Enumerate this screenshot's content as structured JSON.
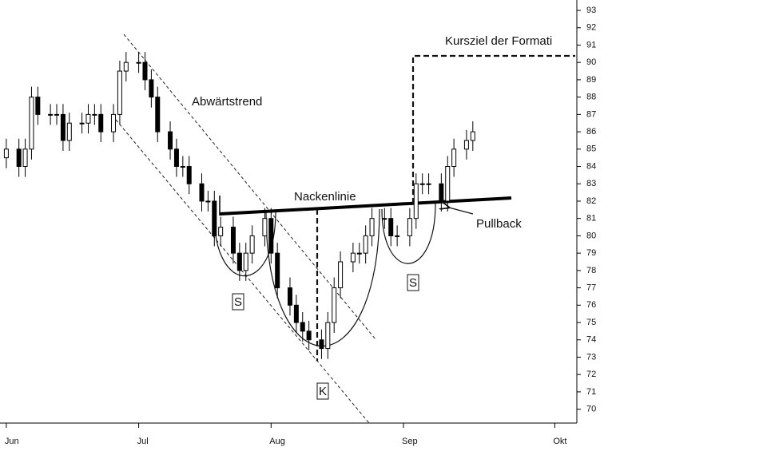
{
  "chart_data": {
    "type": "candlestick",
    "annotations": [
      "Abwärtstrend",
      "Nackenlinie",
      "Pullback",
      "Kursziel der Formati",
      "S",
      "K",
      "S"
    ],
    "x": [
      0,
      2,
      3,
      4,
      5,
      7,
      8,
      9,
      10,
      12,
      13,
      14,
      15,
      17,
      18,
      19,
      21,
      22,
      23,
      24,
      26,
      27,
      28,
      29,
      31,
      32,
      33,
      34,
      36,
      37,
      38,
      39,
      41,
      42,
      43,
      45,
      46,
      47,
      48,
      50,
      51,
      52,
      53,
      55,
      56,
      57,
      58,
      60,
      61,
      62,
      64,
      65,
      66,
      67,
      69,
      70,
      71,
      73,
      74
    ],
    "open": [
      84.5,
      85,
      84,
      85,
      88,
      87,
      87,
      87,
      85.5,
      86.5,
      86.5,
      87,
      87,
      86,
      87,
      89.5,
      90,
      90,
      89,
      88,
      86,
      85,
      84,
      84,
      83,
      82,
      82,
      80,
      80.5,
      79,
      78,
      79,
      80,
      81,
      79,
      77,
      76,
      75,
      74.5,
      74,
      73.5,
      75,
      77,
      78.5,
      79,
      79,
      80,
      81,
      81,
      80,
      80,
      81,
      83,
      83,
      83,
      82,
      84,
      85,
      85.5
    ],
    "high": [
      85.6,
      85.6,
      85.6,
      88.6,
      88.6,
      87.6,
      87.6,
      87.6,
      87.1,
      87.1,
      87.6,
      87.6,
      87.6,
      87.6,
      90.1,
      90.6,
      90.6,
      90.6,
      89.6,
      88.6,
      86.6,
      85.6,
      84.6,
      84.6,
      83.6,
      82.6,
      82.6,
      81.1,
      81.1,
      79.6,
      79.6,
      80.6,
      81.6,
      81.6,
      79.6,
      77.6,
      76.6,
      75.6,
      75.1,
      74.6,
      75.6,
      77.6,
      79.1,
      79.6,
      79.6,
      80.6,
      81.6,
      81.6,
      81.6,
      80.6,
      81.6,
      83.6,
      83.6,
      83.6,
      83.6,
      84.6,
      85.6,
      86.1,
      86.6
    ],
    "low": [
      83.9,
      83.4,
      83.4,
      84.4,
      86.4,
      86.4,
      86.4,
      84.9,
      84.9,
      85.9,
      85.9,
      86.4,
      85.4,
      85.4,
      86.4,
      88.9,
      89.4,
      88.4,
      87.4,
      85.4,
      84.4,
      83.4,
      83.4,
      82.4,
      81.4,
      81.4,
      79.4,
      79.4,
      78.4,
      77.4,
      77.4,
      78.4,
      79.4,
      78.4,
      76.4,
      75.4,
      74.4,
      73.9,
      73.4,
      72.9,
      72.9,
      74.4,
      76.4,
      77.9,
      78.4,
      78.4,
      79.4,
      80.4,
      79.4,
      79.4,
      79.4,
      80.4,
      82.4,
      82.4,
      81.4,
      81.4,
      83.4,
      84.4,
      84.9
    ],
    "close": [
      85,
      84,
      85,
      88,
      87,
      87,
      87,
      85.5,
      86.5,
      86.5,
      87,
      87,
      86,
      87,
      89.5,
      90,
      90,
      89,
      88,
      86,
      85,
      84,
      84,
      83,
      82,
      82,
      80,
      80.5,
      79,
      78,
      79,
      80,
      81,
      79,
      77,
      76,
      75,
      74.5,
      74,
      73.5,
      75,
      77,
      78.5,
      79,
      79,
      80,
      81,
      81,
      80,
      80,
      81,
      83,
      83,
      83,
      82,
      84,
      85,
      85.5,
      86
    ],
    "xlim": [
      -1,
      90.5
    ],
    "xticks": [
      {
        "value": 0,
        "label": "Jun"
      },
      {
        "value": 21,
        "label": "Jul"
      },
      {
        "value": 42,
        "label": "Aug"
      },
      {
        "value": 63,
        "label": "Sep"
      },
      {
        "value": 87,
        "label": "Okt"
      }
    ],
    "ylim": [
      69.2,
      93.6
    ],
    "yticks": [
      70,
      71,
      72,
      73,
      74,
      75,
      76,
      77,
      78,
      79,
      80,
      81,
      82,
      83,
      84,
      85,
      86,
      87,
      88,
      89,
      90,
      91,
      92,
      93
    ],
    "up_color": "#ffffff",
    "down_color": "#000000"
  }
}
